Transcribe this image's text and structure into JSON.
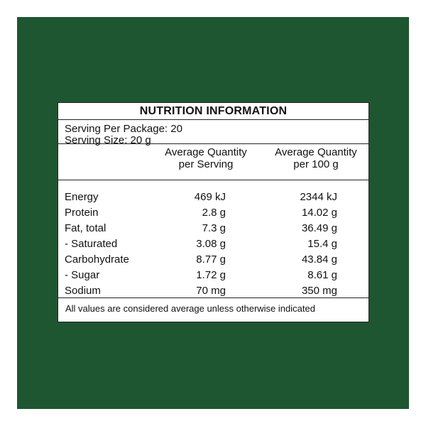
{
  "colors": {
    "background_green": "#1e5631",
    "panel": "#ffffff",
    "text": "#111111"
  },
  "title": "NUTRITION INFORMATION",
  "serving": {
    "per_package": "Serving Per Package: 20",
    "size": "Serving Size: 20 g"
  },
  "columns": {
    "per_serving_line1": "Average Quantity",
    "per_serving_line2": "per Serving",
    "per_100g_line1": "Average Quantity",
    "per_100g_line2": "per 100 g"
  },
  "rows": [
    {
      "name": "Energy",
      "per_serving": "469 kJ",
      "per_100g": "2344 kJ"
    },
    {
      "name": "Protein",
      "per_serving": "2.8 g",
      "per_100g": "14.02 g"
    },
    {
      "name": "Fat, total",
      "per_serving": "7.3 g",
      "per_100g": "36.49 g"
    },
    {
      "name": "- Saturated",
      "per_serving": "3.08 g",
      "per_100g": "15.4 g"
    },
    {
      "name": "Carbohydrate",
      "per_serving": "8.77 g",
      "per_100g": "43.84 g"
    },
    {
      "name": "- Sugar",
      "per_serving": "1.72 g",
      "per_100g": "8.61 g"
    },
    {
      "name": "Sodium",
      "per_serving": "70 mg",
      "per_100g": "350 mg"
    }
  ],
  "footnote": "All values are considered average unless otherwise indicated"
}
